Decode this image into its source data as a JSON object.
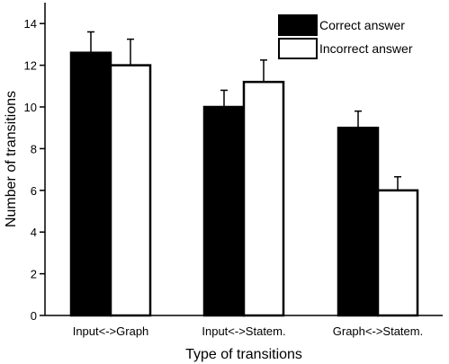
{
  "chart_data": {
    "type": "bar",
    "categories": [
      "Input<->Graph",
      "Input<->Statem.",
      "Graph<->Statem."
    ],
    "series": [
      {
        "name": "Correct answer",
        "values": [
          12.6,
          10.0,
          9.0
        ],
        "errors": [
          1.0,
          0.8,
          0.8
        ],
        "color": "#000000"
      },
      {
        "name": "Incorrect answer",
        "values": [
          12.0,
          11.2,
          6.0
        ],
        "errors": [
          1.25,
          1.05,
          0.65
        ],
        "color": "#ffffff"
      }
    ],
    "xlabel": "Type of transitions",
    "ylabel": "Number of transitions",
    "ylim": [
      0,
      15
    ],
    "yticks": [
      0,
      2,
      4,
      6,
      8,
      10,
      12,
      14
    ],
    "grid": false,
    "legend": "top-right"
  }
}
